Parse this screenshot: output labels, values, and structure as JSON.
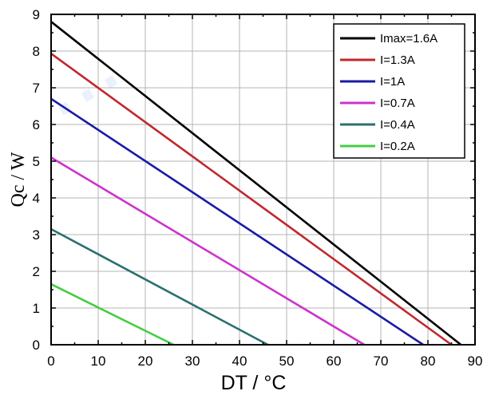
{
  "chart_data": {
    "type": "line",
    "xlabel": "DT / °C",
    "ylabel": "Qc / W",
    "xlim": [
      0,
      90
    ],
    "ylim": [
      0,
      9
    ],
    "xticks": [
      0,
      10,
      20,
      30,
      40,
      50,
      60,
      70,
      80,
      90
    ],
    "yticks": [
      0,
      1,
      2,
      3,
      4,
      5,
      6,
      7,
      8,
      9
    ],
    "grid": true,
    "legend_position": "top-right",
    "series": [
      {
        "name": "Imax=1.6A",
        "color": "#000000",
        "x": [
          0,
          87
        ],
        "y": [
          8.8,
          0
        ]
      },
      {
        "name": "I=1.3A",
        "color": "#c0282d",
        "x": [
          0,
          85
        ],
        "y": [
          7.93,
          0
        ]
      },
      {
        "name": "I=1A",
        "color": "#1a1aa6",
        "x": [
          0,
          79
        ],
        "y": [
          6.7,
          0
        ]
      },
      {
        "name": "I=0.7A",
        "color": "#cc33cc",
        "x": [
          0,
          66.5
        ],
        "y": [
          5.1,
          0
        ]
      },
      {
        "name": "I=0.4A",
        "color": "#2a7070",
        "x": [
          0,
          46
        ],
        "y": [
          3.15,
          0
        ]
      },
      {
        "name": "I=0.2A",
        "color": "#44cc44",
        "x": [
          0,
          26
        ],
        "y": [
          1.65,
          0
        ]
      }
    ]
  }
}
